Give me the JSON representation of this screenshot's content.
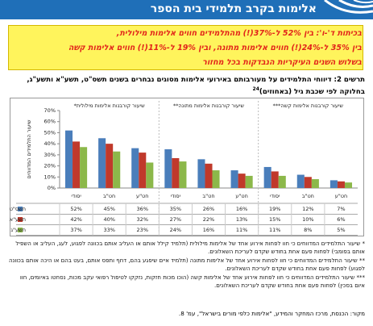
{
  "header": {
    "title": "אלימות בקרב תלמידי בית הספר"
  },
  "callout": [
    "בכיתות ד'-ו': בין 52% ל-37%(!) מהתלמידים חווים אלימות מילולית,",
    "בין 35% ל-24%(!) חווים אלימות מתונה, ובין 19% ל-11%(!) חווים אלימות קשה",
    "בשלוש השנים העיקריות הנבדקות בכל מחזור"
  ],
  "caption": {
    "text": "תרשים 2: דיווחי התלמידים על מעורבותם באירועי אלימות מסוגים נבחרים בשנים תשס\"ט, תשע\"א ותשע\"ג, בחלוקה לפי שכבת גיל (באחוזים)",
    "note": "24"
  },
  "chart_data": {
    "type": "bar",
    "y_label": "שיעור התלמידים המדווחים",
    "groups": [
      "שיעור קורבנות אלימות מילולית*",
      "שיעור קורבנות אלימות מתונה**",
      "שיעור קורבנות אלימות קשה***"
    ],
    "categories": [
      "יסודי",
      "חט\"ב",
      "חט\"ע",
      "יסודי",
      "חט\"ב",
      "חט\"ע",
      "יסודי",
      "חט\"ב",
      "חט\"ע"
    ],
    "series": [
      {
        "name": "תשס\"ט",
        "color": "#4a7ebb",
        "values": [
          52,
          45,
          36,
          35,
          26,
          16,
          19,
          12,
          7
        ],
        "value_labels": [
          "52%",
          "45%",
          "36%",
          "35%",
          "26%",
          "16%",
          "19%",
          "12%",
          "7%"
        ]
      },
      {
        "name": "תשע\"א",
        "color": "#c0392b",
        "values": [
          42,
          40,
          32,
          27,
          22,
          13,
          15,
          10,
          6
        ],
        "value_labels": [
          "42%",
          "40%",
          "32%",
          "27%",
          "22%",
          "13%",
          "15%",
          "10%",
          "6%"
        ]
      },
      {
        "name": "תשע\"ג",
        "color": "#8cb84a",
        "values": [
          37,
          33,
          23,
          24,
          16,
          11,
          11,
          8,
          5
        ],
        "value_labels": [
          "37%",
          "33%",
          "23%",
          "24%",
          "16%",
          "11%",
          "11%",
          "8%",
          "5%"
        ]
      }
    ],
    "ylim": [
      0,
      70
    ],
    "yticks": [
      {
        "value": 0,
        "label": "0%"
      },
      {
        "value": 10,
        "label": "10%"
      },
      {
        "value": 20,
        "label": "20%"
      },
      {
        "value": 30,
        "label": "30%"
      },
      {
        "value": 40,
        "label": "40%"
      },
      {
        "value": 50,
        "label": "50%"
      },
      {
        "value": 60,
        "label": "60%"
      },
      {
        "value": 70,
        "label": "70%"
      }
    ],
    "grid": false
  },
  "notes": [
    "* שיעור התלמידים המדווחים כי חוו לפחות אירוע אחד של אלימות מילולית (תלמיד קילל אותם או העליב אותם בכוונה לפגוע, לעג, העליב או השפיל אותם בפומבי) לפחות פעם אחת בחודש שקדם לעריכת השאלונים.",
    "** שיעור התלמידים המדווחים כי חוו לפחות אירוע אחד של אלימות מתונה (תלמיד איים שיפגע בהם, דחף ותפס אותם, בעט בהם או היכה אותם בכוונה לפגוע) לפחות פעם אחת בחודש שקדם לעריכת השאלונים.",
    "*** שיעור התלמידים המדווחים כי חוו לפחות אירוע אחד של אלימות קשה (הוכו מכות חזקות, נזקקו לטיפול רפואי עקב מכות, נסחטו באיומים, חוו איום בסכין) לפחות פעם אחת בחודש שקדם לעריכת השאלונים."
  ],
  "source": "מקור: הכנסת, מרכז המחקר והמידע, \"אלימות כלפי מורים בישראל\", עמ' 8."
}
